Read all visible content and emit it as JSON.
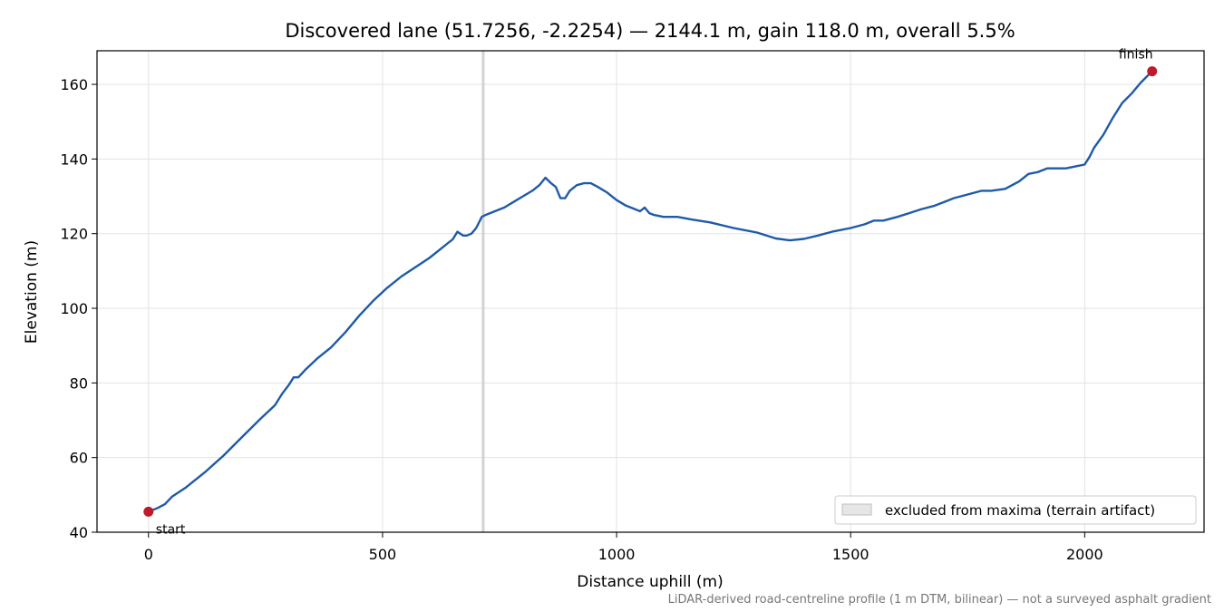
{
  "chart_data": {
    "type": "line",
    "title": "Discovered lane (51.7256, -2.2254) — 2144.1 m, gain 118.0 m, overall 5.5%",
    "xlabel": "Distance uphill (m)",
    "ylabel": "Elevation (m)",
    "xlim": [
      -110,
      2255
    ],
    "ylim": [
      40,
      169
    ],
    "xticks": [
      0,
      500,
      1000,
      1500,
      2000
    ],
    "yticks": [
      40,
      60,
      80,
      100,
      120,
      140,
      160
    ],
    "grid": true,
    "colors": {
      "line": "#1f5aa8",
      "marker": "#c0192a",
      "band": "#cccccc"
    },
    "series": [
      {
        "x": [
          0,
          20,
          35,
          50,
          80,
          120,
          160,
          200,
          240,
          270,
          285,
          300,
          310,
          320,
          335,
          360,
          390,
          420,
          450,
          480,
          510,
          540,
          570,
          600,
          625,
          640,
          650,
          660,
          672,
          680,
          690,
          700,
          712,
          720,
          740,
          760,
          780,
          800,
          820,
          835,
          848,
          860,
          870,
          880,
          890,
          900,
          915,
          930,
          945,
          960,
          980,
          1000,
          1020,
          1040,
          1050,
          1060,
          1070,
          1080,
          1100,
          1130,
          1160,
          1200,
          1250,
          1300,
          1340,
          1370,
          1400,
          1430,
          1460,
          1500,
          1530,
          1550,
          1570,
          1600,
          1625,
          1650,
          1680,
          1700,
          1720,
          1750,
          1780,
          1800,
          1830,
          1860,
          1880,
          1900,
          1920,
          1940,
          1960,
          1980,
          2000,
          2010,
          2020,
          2040,
          2060,
          2080,
          2100,
          2120,
          2144
        ],
        "values": [
          45.5,
          46.5,
          47.5,
          49.5,
          52,
          56,
          60.5,
          65.5,
          70.5,
          74,
          77,
          79.5,
          81.5,
          81.5,
          83.5,
          86.5,
          89.5,
          93.5,
          98,
          102,
          105.5,
          108.5,
          111,
          113.5,
          116,
          117.5,
          118.5,
          120.5,
          119.5,
          119.5,
          120,
          121.5,
          124.5,
          125,
          126,
          127,
          128.5,
          130,
          131.5,
          133,
          135,
          133.5,
          132.5,
          129.5,
          129.5,
          131.5,
          133,
          133.5,
          133.5,
          132.5,
          131,
          129,
          127.5,
          126.5,
          126,
          127,
          125.5,
          125,
          124.5,
          124.5,
          123.8,
          123,
          121.5,
          120.3,
          118.7,
          118.2,
          118.6,
          119.5,
          120.5,
          121.5,
          122.5,
          123.5,
          123.5,
          124.5,
          125.5,
          126.5,
          127.5,
          128.5,
          129.5,
          130.5,
          131.5,
          131.5,
          132,
          134,
          136,
          136.5,
          137.5,
          137.5,
          137.5,
          138,
          138.5,
          140.5,
          143,
          146.5,
          151,
          155,
          157.5,
          160.5,
          163.5
        ]
      }
    ],
    "markers": [
      {
        "label": "start",
        "x": 0,
        "y": 45.5
      },
      {
        "label": "finish",
        "x": 2144.1,
        "y": 163.5
      }
    ],
    "excluded_band": {
      "x": [
        712,
        718
      ]
    },
    "legend": {
      "position": "lower-right",
      "entries": [
        "excluded from maxima (terrain artifact)"
      ]
    },
    "footnote": "LiDAR-derived road-centreline profile (1 m DTM, bilinear) — not a surveyed asphalt gradient"
  }
}
